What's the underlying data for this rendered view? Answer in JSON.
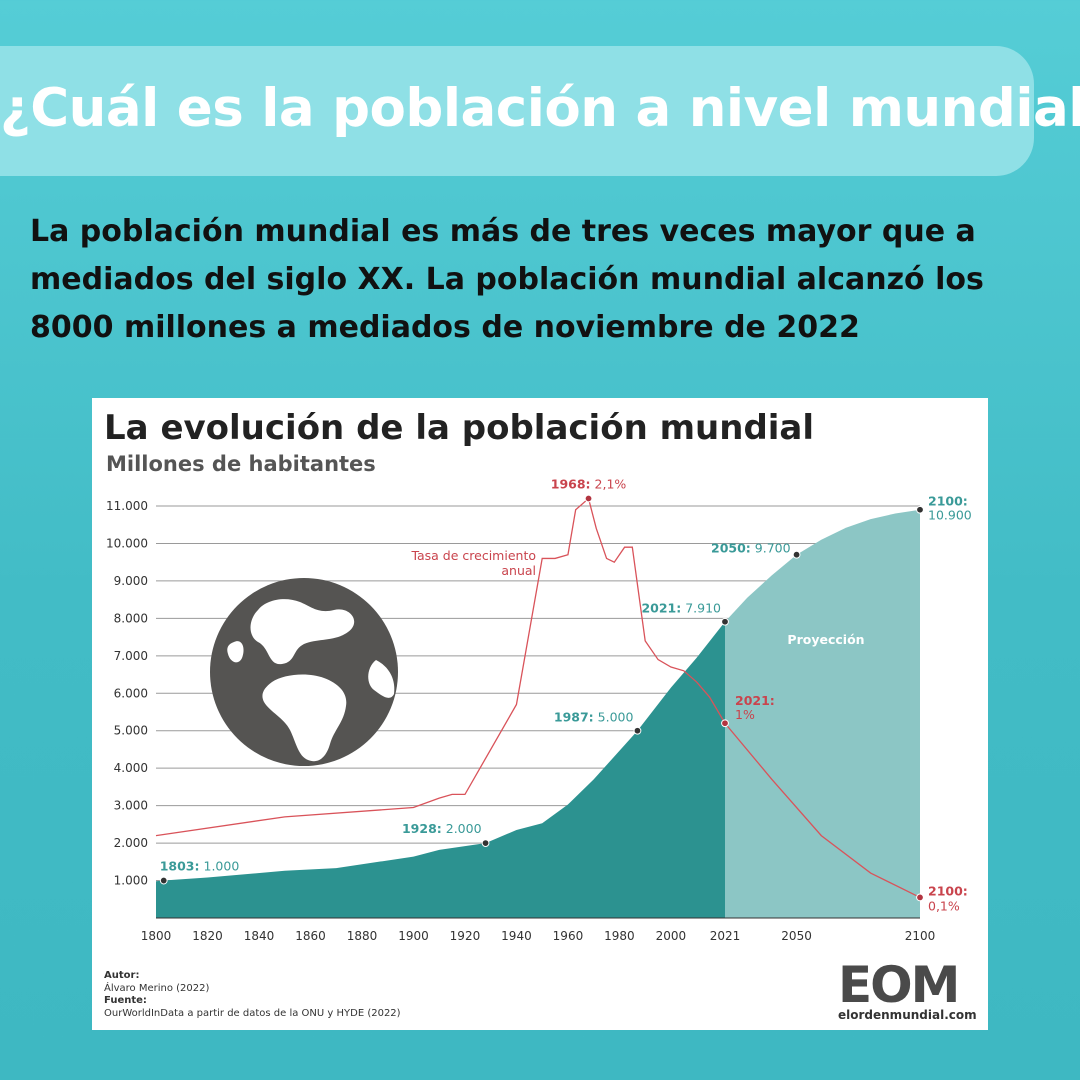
{
  "header": {
    "title": "¿Cuál es la población a nivel mundial?",
    "intro": "La población mundial es más de tres veces mayor que a mediados del siglo XX. La población mundial alcanzó los 8000 millones a mediados de noviembre de 2022"
  },
  "chart_data": {
    "type": "area",
    "title": "La evolución de la población mundial",
    "subtitle": "Millones de habitantes",
    "x_ticks": [
      "1800",
      "1820",
      "1840",
      "1860",
      "1880",
      "1900",
      "1920",
      "1940",
      "1960",
      "1980",
      "2000",
      "2021",
      "2050",
      "2100"
    ],
    "y_ticks": [
      "1.000",
      "2.000",
      "3.000",
      "4.000",
      "5.000",
      "6.000",
      "7.000",
      "8.000",
      "9.000",
      "10.000",
      "11.000"
    ],
    "ylim": [
      0,
      11000
    ],
    "series": [
      {
        "name": "Población (millones)",
        "x": [
          1800,
          1803,
          1820,
          1850,
          1870,
          1900,
          1910,
          1928,
          1940,
          1950,
          1960,
          1970,
          1987,
          2000,
          2010,
          2021
        ],
        "values": [
          980,
          1000,
          1080,
          1260,
          1330,
          1640,
          1820,
          2000,
          2350,
          2530,
          3030,
          3700,
          5000,
          6150,
          6950,
          7910
        ]
      },
      {
        "name": "Proyección",
        "x": [
          2021,
          2030,
          2040,
          2050,
          2060,
          2070,
          2080,
          2090,
          2100
        ],
        "values": [
          7910,
          8550,
          9150,
          9700,
          10100,
          10420,
          10650,
          10800,
          10900
        ]
      },
      {
        "name": "Tasa de crecimiento anual (%)",
        "x": [
          1800,
          1850,
          1900,
          1910,
          1915,
          1920,
          1940,
          1950,
          1955,
          1960,
          1963,
          1968,
          1971,
          1975,
          1978,
          1982,
          1985,
          1990,
          1995,
          2000,
          2005,
          2010,
          2015,
          2021,
          2040,
          2060,
          2080,
          2100
        ],
        "values": [
          0.36,
          0.5,
          0.6,
          0.65,
          0.68,
          0.68,
          1.15,
          1.95,
          1.98,
          2.0,
          2.2,
          2.1,
          1.83,
          1.62,
          1.58,
          1.66,
          1.67,
          1.35,
          1.15,
          1.1,
          1.1,
          1.05,
          0.9,
          1.0,
          0.75,
          0.44,
          0.25,
          0.1
        ],
        "plot_values": [
          2.2,
          2.7,
          2.95,
          3.2,
          3.3,
          3.3,
          5.7,
          9.6,
          9.6,
          9.7,
          10.9,
          11.2,
          10.4,
          9.6,
          9.5,
          9.9,
          9.9,
          7.4,
          6.9,
          6.7,
          6.6,
          6.3,
          5.9,
          5.2,
          3.7,
          2.2,
          1.2,
          0.55
        ]
      }
    ],
    "annotations": {
      "p1803": {
        "year": "1803:",
        "value": "1.000"
      },
      "p1928": {
        "year": "1928:",
        "value": "2.000"
      },
      "p1987": {
        "year": "1987:",
        "value": "5.000"
      },
      "p2021": {
        "year": "2021:",
        "value": "7.910"
      },
      "p2050": {
        "year": "2050:",
        "value": "9.700"
      },
      "p2100": {
        "year": "2100:",
        "value": "10.900"
      },
      "r1968": {
        "year": "1968:",
        "value": "2,1%"
      },
      "r2021": {
        "year": "2021:",
        "value": "1%"
      },
      "r2100": {
        "year": "2100:",
        "value": "0,1%"
      }
    },
    "growth_label_line1": "Tasa de crecimiento",
    "growth_label_line2": "anual",
    "projection_label": "Proyección",
    "colors": {
      "area": "#2c9290",
      "projection": "#8cc6c5",
      "rate": "#d9535a",
      "teal_text": "#3a9a98",
      "red_text": "#c9444d"
    }
  },
  "credits": {
    "author_label": "Autor:",
    "author": "Álvaro Merino (2022)",
    "source_label": "Fuente:",
    "source": "OurWorldInData a partir de datos de la ONU y HYDE (2022)"
  },
  "logo": {
    "text": "EOM",
    "url": "elordenmundial.com"
  }
}
